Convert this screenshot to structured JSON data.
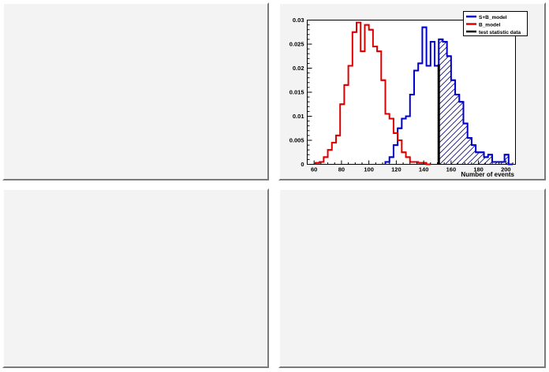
{
  "chart_data": {
    "type": "histogram",
    "title": "",
    "xlabel": "Number of events",
    "ylabel": "",
    "xlim": [
      55,
      207
    ],
    "ylim": [
      0,
      0.03
    ],
    "bin_width": 3,
    "x_ticks": [
      "60",
      "80",
      "100",
      "120",
      "140",
      "160",
      "180",
      "200"
    ],
    "x_tick_values": [
      60,
      80,
      100,
      120,
      140,
      160,
      180,
      200
    ],
    "y_ticks": [
      "0",
      "0.005",
      "0.01",
      "0.015",
      "0.02",
      "0.025",
      "0.03"
    ],
    "y_tick_values": [
      0,
      0.005,
      0.01,
      0.015,
      0.02,
      0.025,
      0.03
    ],
    "test_statistic_value": 151,
    "legend_position": "top-right",
    "series": [
      {
        "name": "S+B_model",
        "color": "#0000cc",
        "bin_starts": [
          112,
          115,
          118,
          121,
          124,
          127,
          130,
          133,
          136,
          139,
          142,
          145,
          148,
          151,
          154,
          157,
          160,
          163,
          166,
          169,
          172,
          175,
          178,
          181,
          184,
          187,
          190,
          193,
          196,
          199,
          202
        ],
        "values": [
          0.0005,
          0.0015,
          0.004,
          0.0075,
          0.0095,
          0.01,
          0.0145,
          0.0195,
          0.021,
          0.0285,
          0.0205,
          0.0255,
          0.0205,
          0.026,
          0.0255,
          0.0225,
          0.0175,
          0.0145,
          0.013,
          0.0085,
          0.0055,
          0.004,
          0.0025,
          0.0025,
          0.0015,
          0.002,
          0.0005,
          0.0005,
          0.0005,
          0.002,
          0.0
        ]
      },
      {
        "name": "B_model",
        "color": "#dd0000",
        "bin_starts": [
          61,
          64,
          67,
          70,
          73,
          76,
          79,
          82,
          85,
          88,
          91,
          94,
          97,
          100,
          103,
          106,
          109,
          112,
          115,
          118,
          121,
          124,
          127,
          130,
          133,
          136,
          139,
          142
        ],
        "values": [
          0.0003,
          0.0005,
          0.0015,
          0.003,
          0.0045,
          0.006,
          0.0125,
          0.0165,
          0.0205,
          0.0275,
          0.0295,
          0.0235,
          0.029,
          0.028,
          0.0245,
          0.0235,
          0.0175,
          0.0105,
          0.0095,
          0.0065,
          0.005,
          0.0025,
          0.0015,
          0.0005,
          0.0005,
          0.0003,
          0.0003,
          0.0
        ]
      }
    ],
    "test_statistic": {
      "name": "test statistic data",
      "color": "#000000"
    }
  }
}
